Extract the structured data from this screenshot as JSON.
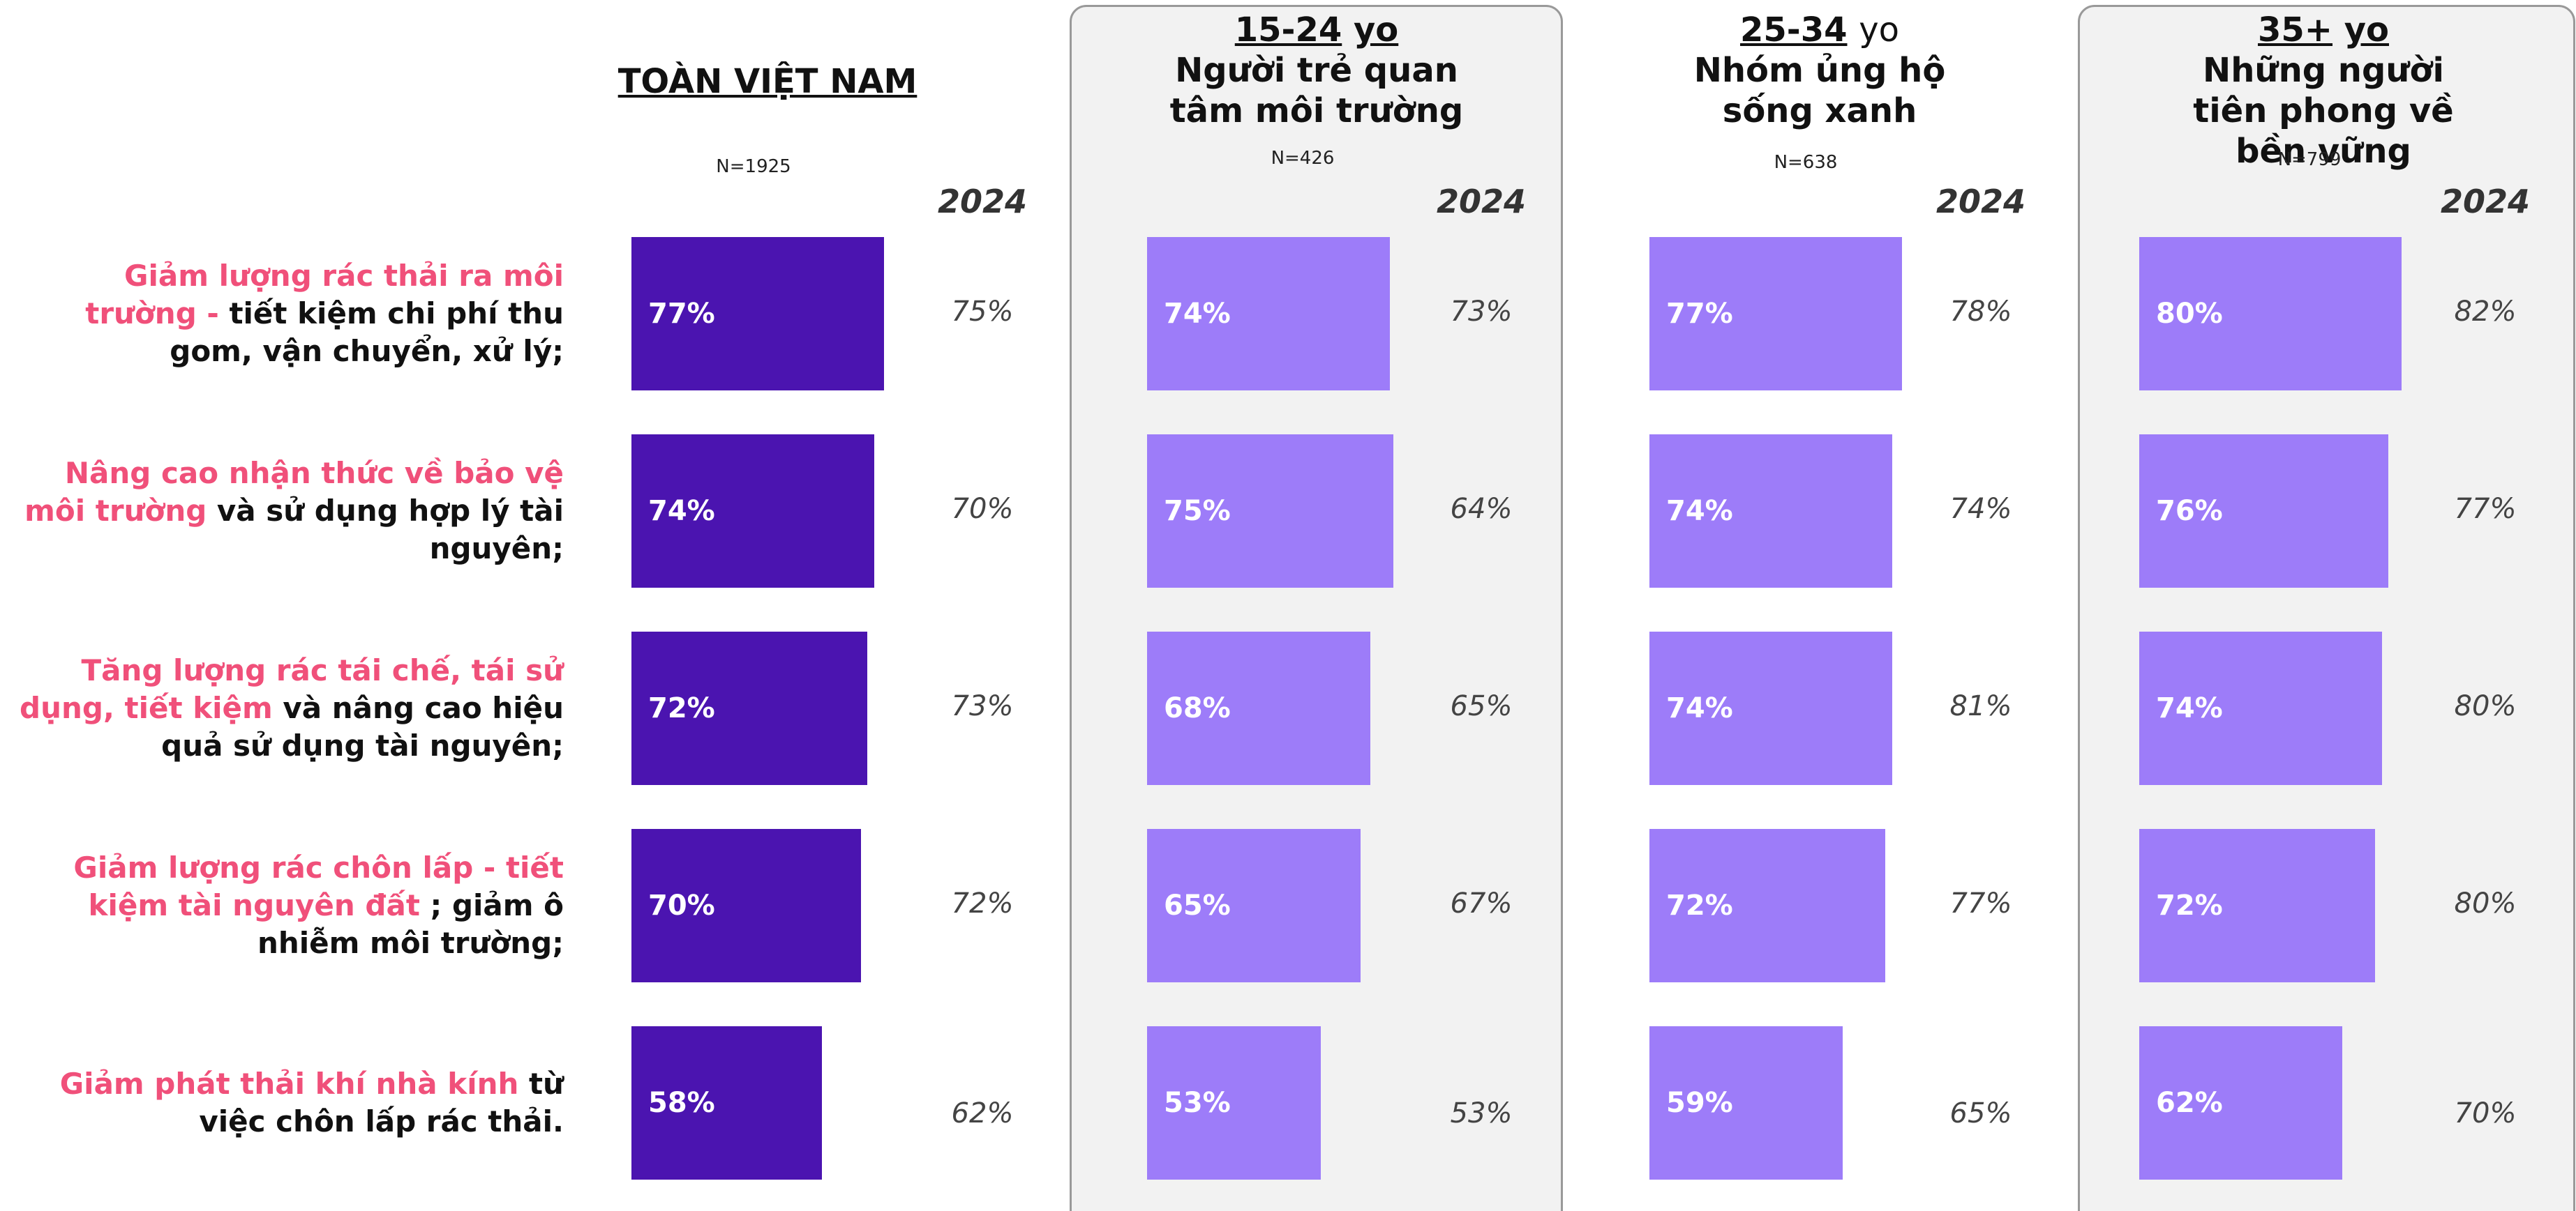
{
  "chart_data": {
    "type": "bar",
    "categories": [
      {
        "highlight": "Giảm lượng rác thải ra môi trường -",
        "text": "tiết kiệm chi phí thu gom, vận chuyển, xử lý;"
      },
      {
        "highlight": "Nâng cao nhận thức về bảo vệ môi trường",
        "text": "và sử dụng hợp lý tài nguyên;"
      },
      {
        "highlight": "Tăng lượng rác tái chế, tái sử dụng, tiết kiệm",
        "text": "và nâng cao hiệu quả sử dụng tài nguyên;"
      },
      {
        "highlight": "Giảm lượng rác chôn lấp - tiết kiệm tài nguyên đất",
        "text": "; giảm ô nhiễm môi trường;"
      },
      {
        "highlight": "Giảm phát thải khí nhà kính",
        "text": "từ việc chôn lấp rác thải."
      }
    ],
    "year_label": "2024",
    "highlight_color": "#f0507a",
    "panels": [
      {
        "title": "TOÀN VIỆT NAM",
        "n": "N=1925",
        "color": "#4b14b0",
        "boxed": false,
        "values": [
          77,
          74,
          72,
          70,
          58
        ],
        "value_labels": [
          "77%",
          "74%",
          "72%",
          "70%",
          "58%"
        ],
        "prior_values": [
          75,
          70,
          73,
          72,
          62
        ],
        "prior_labels": [
          "75%",
          "70%",
          "73%",
          "72%",
          "62%"
        ]
      },
      {
        "age": "15-24",
        "suffix": "yo",
        "suffix_underlined": true,
        "subtitle": "Người trẻ quan tâm môi trường",
        "n": "N=426",
        "color": "#9d7cf9",
        "boxed": true,
        "values": [
          74,
          75,
          68,
          65,
          53
        ],
        "value_labels": [
          "74%",
          "75%",
          "68%",
          "65%",
          "53%"
        ],
        "prior_values": [
          73,
          64,
          65,
          67,
          53
        ],
        "prior_labels": [
          "73%",
          "64%",
          "65%",
          "67%",
          "53%"
        ]
      },
      {
        "age": "25-34",
        "suffix": "yo",
        "suffix_underlined": false,
        "subtitle": "Nhóm ủng hộ sống xanh",
        "n": "N=638",
        "color": "#9d7cf9",
        "boxed": false,
        "values": [
          77,
          74,
          74,
          72,
          59
        ],
        "value_labels": [
          "77%",
          "74%",
          "74%",
          "72%",
          "59%"
        ],
        "prior_values": [
          78,
          74,
          81,
          77,
          65
        ],
        "prior_labels": [
          "78%",
          "74%",
          "81%",
          "77%",
          "65%"
        ]
      },
      {
        "age": "35+",
        "suffix": "yo",
        "suffix_underlined": true,
        "subtitle": "Những người tiên phong về bền vững",
        "n": "N=799",
        "color": "#9d7cf9",
        "boxed": true,
        "values": [
          80,
          76,
          74,
          72,
          62
        ],
        "value_labels": [
          "80%",
          "76%",
          "74%",
          "72%",
          "62%"
        ],
        "prior_values": [
          82,
          77,
          80,
          80,
          70
        ],
        "prior_labels": [
          "82%",
          "77%",
          "80%",
          "80%",
          "70%"
        ]
      }
    ]
  }
}
